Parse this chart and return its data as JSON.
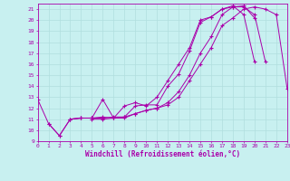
{
  "xlabel": "Windchill (Refroidissement éolien,°C)",
  "xlim": [
    0,
    23
  ],
  "ylim": [
    9,
    21.5
  ],
  "yticks": [
    9,
    10,
    11,
    12,
    13,
    14,
    15,
    16,
    17,
    18,
    19,
    20,
    21
  ],
  "xticks": [
    0,
    1,
    2,
    3,
    4,
    5,
    6,
    7,
    8,
    9,
    10,
    11,
    12,
    13,
    14,
    15,
    16,
    17,
    18,
    19,
    20,
    21,
    22,
    23
  ],
  "bg_color": "#c8f0f0",
  "grid_color": "#b0dede",
  "line_color": "#aa00aa",
  "curves": [
    {
      "x": [
        0,
        1,
        2,
        3,
        4,
        5,
        6,
        7,
        8,
        9,
        10,
        11,
        12,
        13,
        14,
        15,
        16,
        17,
        18,
        19,
        20
      ],
      "y": [
        12.8,
        10.6,
        9.5,
        11.0,
        11.1,
        11.1,
        12.8,
        11.1,
        11.2,
        12.2,
        12.3,
        12.3,
        14.0,
        15.1,
        17.2,
        19.8,
        20.3,
        21.0,
        21.3,
        20.5,
        16.2
      ]
    },
    {
      "x": [
        3,
        4,
        5,
        6,
        7,
        8,
        9,
        10,
        11,
        12,
        13,
        14,
        15,
        16,
        17,
        18,
        19,
        20
      ],
      "y": [
        11.0,
        11.1,
        11.1,
        11.2,
        11.1,
        12.2,
        12.5,
        12.2,
        13.0,
        14.5,
        16.0,
        17.5,
        20.0,
        20.3,
        21.0,
        21.2,
        21.3,
        20.2
      ]
    },
    {
      "x": [
        5,
        6,
        7,
        8,
        9,
        10,
        11,
        12,
        13,
        14,
        15,
        16,
        17,
        18,
        19,
        20,
        21
      ],
      "y": [
        11.0,
        11.0,
        11.1,
        11.1,
        11.5,
        11.8,
        12.0,
        12.5,
        13.5,
        15.0,
        17.0,
        18.5,
        20.5,
        21.2,
        21.2,
        20.5,
        16.2
      ]
    },
    {
      "x": [
        1,
        2,
        3,
        4,
        5,
        6,
        7,
        8,
        9,
        10,
        11,
        12,
        13,
        14,
        15,
        16,
        17,
        18,
        19,
        20,
        21,
        22,
        23
      ],
      "y": [
        10.6,
        9.5,
        11.0,
        11.1,
        11.1,
        11.1,
        11.2,
        11.2,
        11.5,
        11.8,
        12.0,
        12.3,
        13.0,
        14.5,
        16.0,
        17.5,
        19.5,
        20.2,
        21.0,
        21.2,
        21.0,
        20.5,
        13.8
      ]
    }
  ]
}
